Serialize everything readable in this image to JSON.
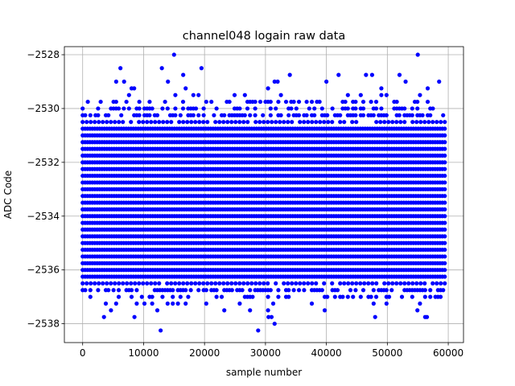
{
  "chart_data": {
    "type": "scatter",
    "title": "channel048 logain raw data",
    "xlabel": "sample number",
    "ylabel": "ADC Code",
    "xlim": [
      -3000,
      62500
    ],
    "ylim": [
      -2538.7,
      -2527.7
    ],
    "xticks": [
      0,
      10000,
      20000,
      30000,
      40000,
      50000,
      60000
    ],
    "xtick_labels": [
      "0",
      "10000",
      "20000",
      "30000",
      "40000",
      "50000",
      "60000"
    ],
    "yticks": [
      -2538,
      -2536,
      -2534,
      -2532,
      -2530,
      -2528
    ],
    "ytick_labels": [
      "−2538",
      "−2536",
      "−2534",
      "−2532",
      "−2530",
      "−2528"
    ],
    "grid": true,
    "marker_color": "#0000ff",
    "x_range": [
      0,
      59500
    ],
    "band_levels": [
      -2536.5,
      -2536.25,
      -2536.0,
      -2535.75,
      -2535.5,
      -2535.25,
      -2535.0,
      -2534.75,
      -2534.5,
      -2534.25,
      -2534.0,
      -2533.75,
      -2533.5,
      -2533.25,
      -2533.0,
      -2532.75,
      -2532.5,
      -2532.25,
      -2532.0,
      -2531.75,
      -2531.5,
      -2531.25,
      -2531.0,
      -2530.75,
      -2530.5
    ],
    "sparse_levels_low": [
      -2537.75,
      -2537.5,
      -2537.25,
      -2537.0,
      -2536.75
    ],
    "sparse_levels_high": [
      -2530.25,
      -2530.0,
      -2529.75,
      -2529.5,
      -2529.25
    ],
    "outliers": [
      {
        "x": 15000,
        "y": -2528.0
      },
      {
        "x": 55000,
        "y": -2528.0
      },
      {
        "x": 6200,
        "y": -2528.5
      },
      {
        "x": 13000,
        "y": -2528.5
      },
      {
        "x": 19500,
        "y": -2528.5
      },
      {
        "x": 16500,
        "y": -2528.75
      },
      {
        "x": 34000,
        "y": -2528.75
      },
      {
        "x": 42000,
        "y": -2528.75
      },
      {
        "x": 46500,
        "y": -2528.75
      },
      {
        "x": 47500,
        "y": -2528.75
      },
      {
        "x": 52000,
        "y": -2528.75
      },
      {
        "x": 5500,
        "y": -2529.0
      },
      {
        "x": 6800,
        "y": -2529.0
      },
      {
        "x": 14000,
        "y": -2529.0
      },
      {
        "x": 31500,
        "y": -2529.0
      },
      {
        "x": 32000,
        "y": -2529.0
      },
      {
        "x": 40000,
        "y": -2529.0
      },
      {
        "x": 53000,
        "y": -2529.0
      },
      {
        "x": 58500,
        "y": -2529.0
      },
      {
        "x": 12800,
        "y": -2538.25
      },
      {
        "x": 28800,
        "y": -2538.25
      },
      {
        "x": 31500,
        "y": -2538.0
      },
      {
        "x": 3500,
        "y": -2537.75
      },
      {
        "x": 8500,
        "y": -2537.75
      },
      {
        "x": 30500,
        "y": -2537.75
      },
      {
        "x": 31000,
        "y": -2537.75
      },
      {
        "x": 48000,
        "y": -2537.75
      },
      {
        "x": 56500,
        "y": -2537.75
      }
    ]
  }
}
